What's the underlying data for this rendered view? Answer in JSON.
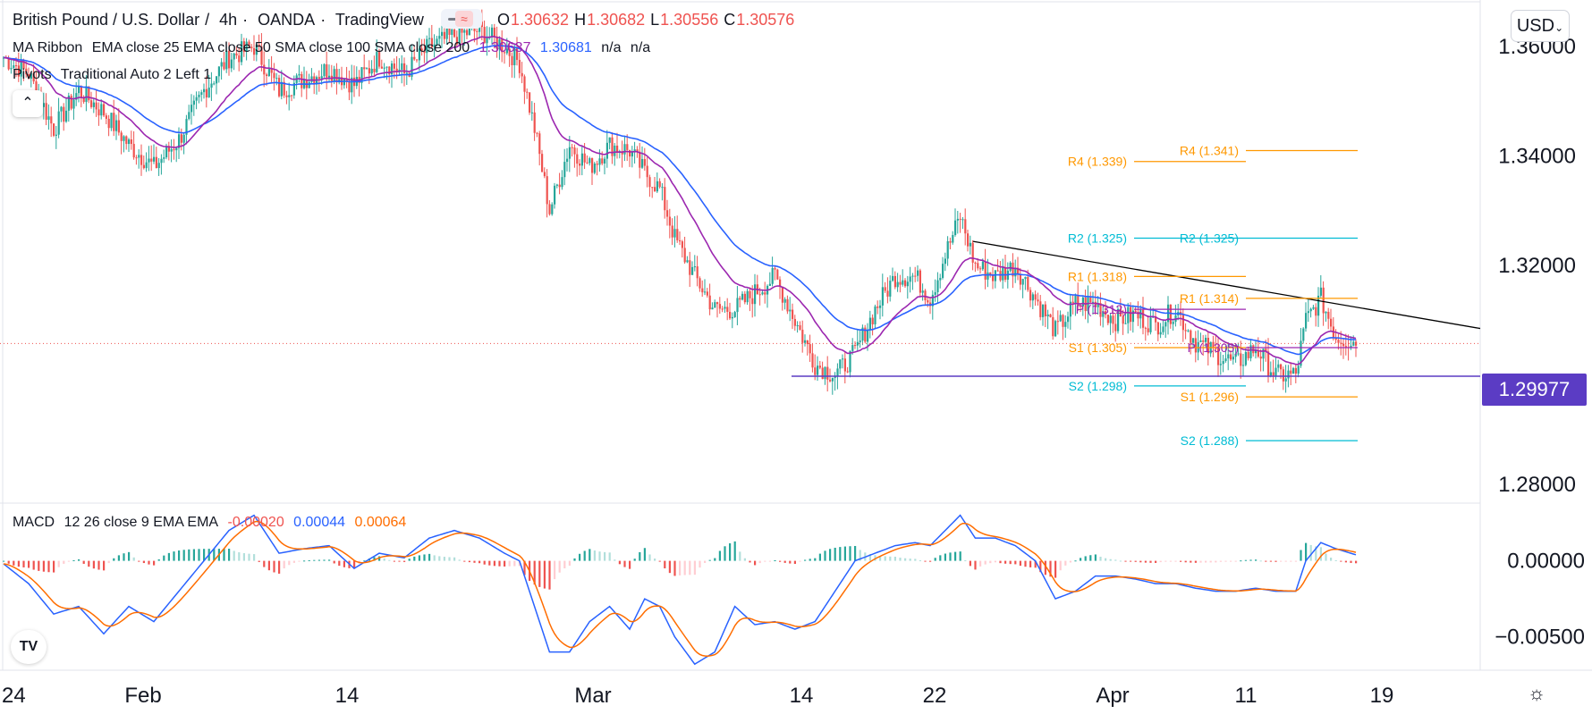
{
  "header": {
    "symbol": "British Pound / U.S. Dollar",
    "interval": "4h",
    "exchange": "OANDA",
    "source": "TradingView",
    "open_label": "O",
    "open": "1.30632",
    "high_label": "H",
    "high": "1.30682",
    "low_label": "L",
    "low": "1.30556",
    "close_label": "C",
    "close": "1.30576"
  },
  "ma_ribbon": {
    "label": "MA Ribbon",
    "params": "EMA close 25 EMA close 50 SMA close 100 SMA close 200",
    "v1": "1.30637",
    "v2": "1.30681",
    "v3": "n/a",
    "v4": "n/a",
    "colors": [
      "#9c27b0",
      "#2962ff"
    ]
  },
  "pivots": {
    "label": "Pivots",
    "params": "Traditional Auto 2 Left 1"
  },
  "macd_legend": {
    "label": "MACD",
    "params": "12 26 close 9 EMA EMA",
    "hist": "-0.00020",
    "macd": "0.00044",
    "signal": "0.00064"
  },
  "currency_button": "USD",
  "price_tag": "1.29977",
  "colors": {
    "up": "#26a69a",
    "down": "#ef5350",
    "ema25": "#9c27b0",
    "ema50": "#2962ff",
    "macd_line": "#2962ff",
    "signal_line": "#ff6d00",
    "support_line": "#5b3cc4",
    "pivot_orange": "#ff9800",
    "pivot_teal": "#00bcd4",
    "trendline": "#000000"
  },
  "icons": [
    "collapse-chevron-icon",
    "tradingview-logo-icon",
    "gear-icon",
    "chevron-down-icon"
  ],
  "chart_data": [
    {
      "type": "candlestick",
      "title": "British Pound / U.S. Dollar",
      "y_ticks": [
        "1.36000",
        "1.34000",
        "1.32000",
        "1.28000"
      ],
      "x_ticks": [
        "24",
        "Feb",
        "14",
        "Mar",
        "14",
        "22",
        "Apr",
        "11",
        "19"
      ],
      "ylim": [
        1.2766,
        1.3685
      ],
      "close_path_anchors": [
        [
          0,
          1.358
        ],
        [
          10,
          1.355
        ],
        [
          20,
          1.345
        ],
        [
          30,
          1.352
        ],
        [
          40,
          1.348
        ],
        [
          50,
          1.342
        ],
        [
          60,
          1.338
        ],
        [
          70,
          1.343
        ],
        [
          80,
          1.352
        ],
        [
          90,
          1.358
        ],
        [
          100,
          1.36
        ],
        [
          110,
          1.352
        ],
        [
          120,
          1.354
        ],
        [
          130,
          1.356
        ],
        [
          140,
          1.353
        ],
        [
          150,
          1.358
        ],
        [
          160,
          1.355
        ],
        [
          170,
          1.36
        ],
        [
          180,
          1.362
        ],
        [
          190,
          1.363
        ],
        [
          200,
          1.36
        ],
        [
          206,
          1.357
        ],
        [
          212,
          1.345
        ],
        [
          218,
          1.33
        ],
        [
          226,
          1.342
        ],
        [
          234,
          1.338
        ],
        [
          242,
          1.342
        ],
        [
          250,
          1.341
        ],
        [
          256,
          1.337
        ],
        [
          262,
          1.334
        ],
        [
          268,
          1.325
        ],
        [
          276,
          1.318
        ],
        [
          284,
          1.312
        ],
        [
          292,
          1.312
        ],
        [
          300,
          1.315
        ],
        [
          308,
          1.318
        ],
        [
          316,
          1.31
        ],
        [
          324,
          1.302
        ],
        [
          332,
          1.3
        ],
        [
          340,
          1.304
        ],
        [
          348,
          1.312
        ],
        [
          356,
          1.318
        ],
        [
          364,
          1.318
        ],
        [
          370,
          1.314
        ],
        [
          376,
          1.322
        ],
        [
          382,
          1.329
        ],
        [
          388,
          1.32
        ],
        [
          396,
          1.318
        ],
        [
          404,
          1.32
        ],
        [
          412,
          1.314
        ],
        [
          420,
          1.308
        ],
        [
          428,
          1.313
        ],
        [
          436,
          1.313
        ],
        [
          444,
          1.31
        ],
        [
          452,
          1.311
        ],
        [
          460,
          1.309
        ],
        [
          468,
          1.312
        ],
        [
          476,
          1.306
        ],
        [
          484,
          1.304
        ],
        [
          492,
          1.302
        ],
        [
          500,
          1.305
        ],
        [
          508,
          1.3
        ],
        [
          516,
          1.3
        ],
        [
          520,
          1.31
        ],
        [
          526,
          1.314
        ],
        [
          532,
          1.307
        ],
        [
          540,
          1.306
        ]
      ],
      "pivot_levels": [
        {
          "label": "R4 (1.339)",
          "value": 1.339,
          "color": "orange"
        },
        {
          "label": "R2 (1.325)",
          "value": 1.325,
          "color": "teal"
        },
        {
          "label": "R1 (1.318)",
          "value": 1.318,
          "color": "orange"
        },
        {
          "label": "P (1.312)",
          "value": 1.312,
          "color": "gray"
        },
        {
          "label": "S1 (1.305)",
          "value": 1.305,
          "color": "orange"
        },
        {
          "label": "S2 (1.298)",
          "value": 1.298,
          "color": "teal"
        },
        {
          "label": "R4 (1.341)",
          "value": 1.341,
          "color": "orange"
        },
        {
          "label": "R2 (1.325)",
          "value": 1.325,
          "color": "teal"
        },
        {
          "label": "R1 (1.314)",
          "value": 1.314,
          "color": "orange"
        },
        {
          "label": "P (1.305)",
          "value": 1.305,
          "color": "gray"
        },
        {
          "label": "S1 (1.296)",
          "value": 1.296,
          "color": "orange"
        },
        {
          "label": "S2 (1.288)",
          "value": 1.288,
          "color": "teal"
        }
      ],
      "support_level": 1.29977,
      "current_price": 1.30576
    },
    {
      "type": "macd",
      "title": "MACD 12 26 close 9 EMA EMA",
      "y_ticks": [
        "0.00000",
        "−0.00500"
      ],
      "ylim": [
        -0.0072,
        0.0038
      ],
      "macd_anchors": [
        [
          0,
          -0.0002
        ],
        [
          10,
          -0.0015
        ],
        [
          20,
          -0.0035
        ],
        [
          30,
          -0.003
        ],
        [
          40,
          -0.0048
        ],
        [
          50,
          -0.003
        ],
        [
          60,
          -0.004
        ],
        [
          70,
          -0.002
        ],
        [
          80,
          0.0
        ],
        [
          90,
          0.002
        ],
        [
          100,
          0.003
        ],
        [
          110,
          0.0005
        ],
        [
          120,
          0.0008
        ],
        [
          130,
          0.001
        ],
        [
          140,
          -0.0005
        ],
        [
          150,
          0.0005
        ],
        [
          160,
          0.0002
        ],
        [
          170,
          0.0015
        ],
        [
          180,
          0.002
        ],
        [
          190,
          0.0015
        ],
        [
          200,
          0.0005
        ],
        [
          206,
          0.0
        ],
        [
          212,
          -0.003
        ],
        [
          218,
          -0.006
        ],
        [
          226,
          -0.006
        ],
        [
          234,
          -0.004
        ],
        [
          242,
          -0.003
        ],
        [
          250,
          -0.0045
        ],
        [
          256,
          -0.0025
        ],
        [
          262,
          -0.003
        ],
        [
          268,
          -0.005
        ],
        [
          276,
          -0.0068
        ],
        [
          284,
          -0.006
        ],
        [
          292,
          -0.003
        ],
        [
          300,
          -0.0042
        ],
        [
          308,
          -0.004
        ],
        [
          316,
          -0.0045
        ],
        [
          324,
          -0.004
        ],
        [
          332,
          -0.002
        ],
        [
          340,
          0.0
        ],
        [
          348,
          0.0005
        ],
        [
          356,
          0.001
        ],
        [
          364,
          0.0012
        ],
        [
          370,
          0.001
        ],
        [
          376,
          0.002
        ],
        [
          382,
          0.003
        ],
        [
          388,
          0.0015
        ],
        [
          396,
          0.0015
        ],
        [
          404,
          0.001
        ],
        [
          412,
          0.0
        ],
        [
          420,
          -0.0025
        ],
        [
          428,
          -0.002
        ],
        [
          436,
          -0.001
        ],
        [
          444,
          -0.001
        ],
        [
          452,
          -0.0012
        ],
        [
          460,
          -0.0015
        ],
        [
          468,
          -0.0015
        ],
        [
          476,
          -0.0018
        ],
        [
          484,
          -0.002
        ],
        [
          492,
          -0.002
        ],
        [
          500,
          -0.0018
        ],
        [
          508,
          -0.002
        ],
        [
          516,
          -0.002
        ],
        [
          520,
          0.0
        ],
        [
          526,
          0.0012
        ],
        [
          532,
          0.0008
        ],
        [
          540,
          0.0004
        ]
      ],
      "last_values": {
        "histogram": -0.0002,
        "macd": 0.00044,
        "signal": 0.00064
      }
    }
  ]
}
